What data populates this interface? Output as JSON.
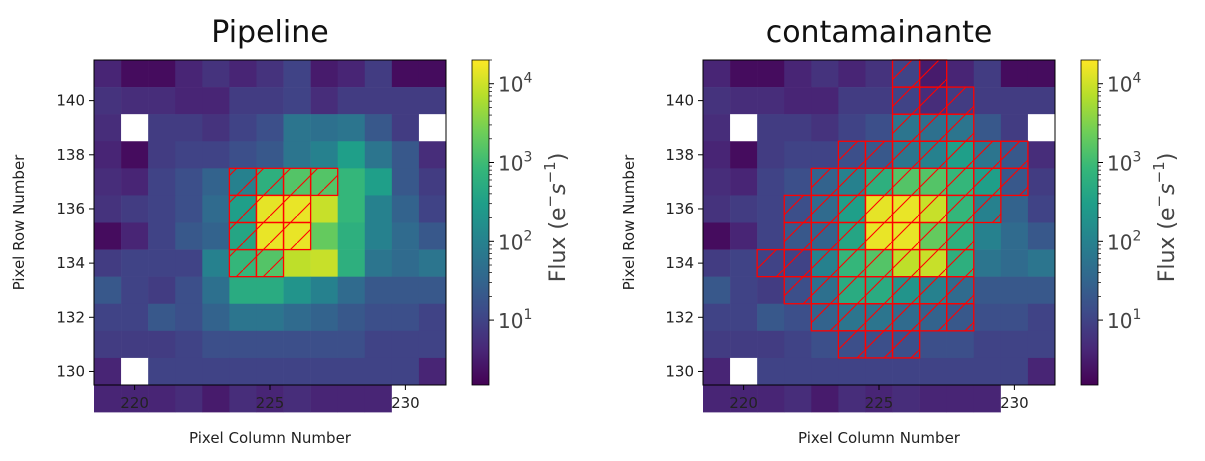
{
  "chart_data": [
    {
      "type": "heatmap",
      "title": "Pipeline",
      "xlabel": "Pixel Column Number",
      "ylabel": "Pixel Row Number",
      "xlim": [
        218.5,
        231.5
      ],
      "ylim": [
        129.5,
        141.5
      ],
      "xticks": [
        220,
        225,
        230
      ],
      "yticks": [
        130,
        132,
        134,
        136,
        138,
        140
      ],
      "color_scale": "log",
      "colorbar": {
        "label": "Flux ($e^{-}s^{-1}$)",
        "label_text": "Flux (e",
        "label_sup1": "−",
        "label_mid": "s",
        "label_sup2": "−1",
        "label_end": ")",
        "range": [
          1.5,
          20000
        ],
        "ticks": [
          {
            "base": "10",
            "exp": "1",
            "value": 10
          },
          {
            "base": "10",
            "exp": "2",
            "value": 100
          },
          {
            "base": "10",
            "exp": "3",
            "value": 1000
          },
          {
            "base": "10",
            "exp": "4",
            "value": 10000
          }
        ]
      },
      "colormap": [
        "#440154",
        "#482878",
        "#3e4a89",
        "#31688e",
        "#26828e",
        "#1f9e89",
        "#35b779",
        "#6ece58",
        "#b5de2b",
        "#fde725"
      ],
      "mask_color": "#ff0000",
      "flux_rows_top_to_bottom": [
        [
          4,
          2,
          2,
          4,
          6,
          4,
          6,
          10,
          3,
          4,
          8,
          2,
          2
        ],
        [
          6,
          5,
          5,
          4,
          4,
          8,
          8,
          10,
          5,
          8,
          8,
          8,
          8
        ],
        [
          5,
          null,
          8,
          8,
          6,
          10,
          15,
          60,
          50,
          60,
          20,
          8,
          null
        ],
        [
          4,
          2,
          8,
          10,
          10,
          15,
          20,
          60,
          100,
          300,
          60,
          20,
          5
        ],
        [
          5,
          4,
          10,
          15,
          30,
          100,
          600,
          1500,
          1500,
          800,
          300,
          20,
          8
        ],
        [
          6,
          8,
          10,
          15,
          40,
          300,
          14000,
          15000,
          9000,
          800,
          100,
          30,
          10
        ],
        [
          2,
          4,
          10,
          20,
          30,
          400,
          15000,
          15000,
          2000,
          600,
          100,
          40,
          20
        ],
        [
          8,
          10,
          10,
          10,
          100,
          800,
          1500,
          8000,
          9000,
          600,
          60,
          40,
          60
        ],
        [
          20,
          10,
          8,
          15,
          50,
          500,
          500,
          200,
          100,
          40,
          20,
          20,
          20
        ],
        [
          10,
          10,
          20,
          15,
          30,
          60,
          60,
          40,
          30,
          20,
          15,
          15,
          10
        ],
        [
          8,
          8,
          8,
          10,
          15,
          15,
          15,
          15,
          15,
          15,
          10,
          10,
          10
        ],
        [
          4,
          null,
          10,
          10,
          10,
          10,
          10,
          10,
          10,
          10,
          10,
          10,
          4
        ],
        [
          4,
          4,
          4,
          5,
          3,
          5,
          4,
          5,
          4,
          4,
          4,
          null,
          null
        ]
      ],
      "mask_pixels": [
        [
          224,
          137
        ],
        [
          225,
          137
        ],
        [
          226,
          137
        ],
        [
          227,
          137
        ],
        [
          224,
          136
        ],
        [
          225,
          136
        ],
        [
          226,
          136
        ],
        [
          224,
          135
        ],
        [
          225,
          135
        ],
        [
          226,
          135
        ],
        [
          224,
          134
        ],
        [
          225,
          134
        ]
      ]
    },
    {
      "type": "heatmap",
      "title": "contamainante",
      "xlabel": "Pixel Column Number",
      "ylabel": "Pixel Row Number",
      "xlim": [
        218.5,
        231.5
      ],
      "ylim": [
        129.5,
        141.5
      ],
      "xticks": [
        220,
        225,
        230
      ],
      "yticks": [
        130,
        132,
        134,
        136,
        138,
        140
      ],
      "color_scale": "log",
      "colorbar": {
        "label": "Flux ($e^{-}s^{-1}$)",
        "label_text": "Flux (e",
        "label_sup1": "−",
        "label_mid": "s",
        "label_sup2": "−1",
        "label_end": ")",
        "range": [
          1.5,
          20000
        ],
        "ticks": [
          {
            "base": "10",
            "exp": "1",
            "value": 10
          },
          {
            "base": "10",
            "exp": "2",
            "value": 100
          },
          {
            "base": "10",
            "exp": "3",
            "value": 1000
          },
          {
            "base": "10",
            "exp": "4",
            "value": 10000
          }
        ]
      },
      "colormap": [
        "#440154",
        "#482878",
        "#3e4a89",
        "#31688e",
        "#26828e",
        "#1f9e89",
        "#35b779",
        "#6ece58",
        "#b5de2b",
        "#fde725"
      ],
      "mask_color": "#ff0000",
      "flux_rows_top_to_bottom": [
        [
          4,
          2,
          2,
          4,
          6,
          4,
          6,
          10,
          3,
          4,
          8,
          2,
          2
        ],
        [
          6,
          5,
          5,
          4,
          4,
          8,
          8,
          10,
          5,
          8,
          8,
          8,
          8
        ],
        [
          5,
          null,
          8,
          8,
          6,
          10,
          15,
          60,
          50,
          60,
          20,
          8,
          null
        ],
        [
          4,
          2,
          8,
          10,
          10,
          15,
          20,
          60,
          100,
          300,
          60,
          20,
          5
        ],
        [
          5,
          4,
          10,
          15,
          30,
          100,
          600,
          1500,
          1500,
          800,
          300,
          20,
          8
        ],
        [
          6,
          8,
          10,
          15,
          40,
          300,
          14000,
          15000,
          9000,
          800,
          100,
          30,
          10
        ],
        [
          2,
          4,
          10,
          20,
          30,
          400,
          15000,
          15000,
          2000,
          600,
          100,
          40,
          20
        ],
        [
          8,
          10,
          10,
          10,
          100,
          800,
          1500,
          8000,
          9000,
          600,
          60,
          40,
          60
        ],
        [
          20,
          10,
          8,
          15,
          50,
          500,
          500,
          200,
          100,
          40,
          20,
          20,
          20
        ],
        [
          10,
          10,
          20,
          15,
          30,
          60,
          60,
          40,
          30,
          20,
          15,
          15,
          10
        ],
        [
          8,
          8,
          8,
          10,
          15,
          15,
          15,
          15,
          15,
          15,
          10,
          10,
          10
        ],
        [
          4,
          null,
          10,
          10,
          10,
          10,
          10,
          10,
          10,
          10,
          10,
          10,
          4
        ],
        [
          4,
          4,
          4,
          5,
          3,
          5,
          4,
          5,
          4,
          4,
          4,
          null,
          null
        ]
      ],
      "mask_pixels": [
        [
          226,
          141
        ],
        [
          227,
          141
        ],
        [
          226,
          140
        ],
        [
          227,
          140
        ],
        [
          228,
          140
        ],
        [
          226,
          139
        ],
        [
          227,
          139
        ],
        [
          228,
          139
        ],
        [
          224,
          138
        ],
        [
          225,
          138
        ],
        [
          226,
          138
        ],
        [
          227,
          138
        ],
        [
          228,
          138
        ],
        [
          229,
          138
        ],
        [
          230,
          138
        ],
        [
          223,
          137
        ],
        [
          224,
          137
        ],
        [
          225,
          137
        ],
        [
          226,
          137
        ],
        [
          227,
          137
        ],
        [
          228,
          137
        ],
        [
          229,
          137
        ],
        [
          230,
          137
        ],
        [
          222,
          136
        ],
        [
          223,
          136
        ],
        [
          224,
          136
        ],
        [
          225,
          136
        ],
        [
          226,
          136
        ],
        [
          227,
          136
        ],
        [
          228,
          136
        ],
        [
          229,
          136
        ],
        [
          222,
          135
        ],
        [
          223,
          135
        ],
        [
          224,
          135
        ],
        [
          225,
          135
        ],
        [
          226,
          135
        ],
        [
          227,
          135
        ],
        [
          228,
          135
        ],
        [
          221,
          134
        ],
        [
          222,
          134
        ],
        [
          223,
          134
        ],
        [
          224,
          134
        ],
        [
          225,
          134
        ],
        [
          226,
          134
        ],
        [
          227,
          134
        ],
        [
          228,
          134
        ],
        [
          222,
          133
        ],
        [
          223,
          133
        ],
        [
          224,
          133
        ],
        [
          225,
          133
        ],
        [
          226,
          133
        ],
        [
          227,
          133
        ],
        [
          228,
          133
        ],
        [
          223,
          132
        ],
        [
          224,
          132
        ],
        [
          225,
          132
        ],
        [
          226,
          132
        ],
        [
          227,
          132
        ],
        [
          228,
          132
        ],
        [
          224,
          131
        ],
        [
          225,
          131
        ],
        [
          226,
          131
        ]
      ]
    }
  ]
}
